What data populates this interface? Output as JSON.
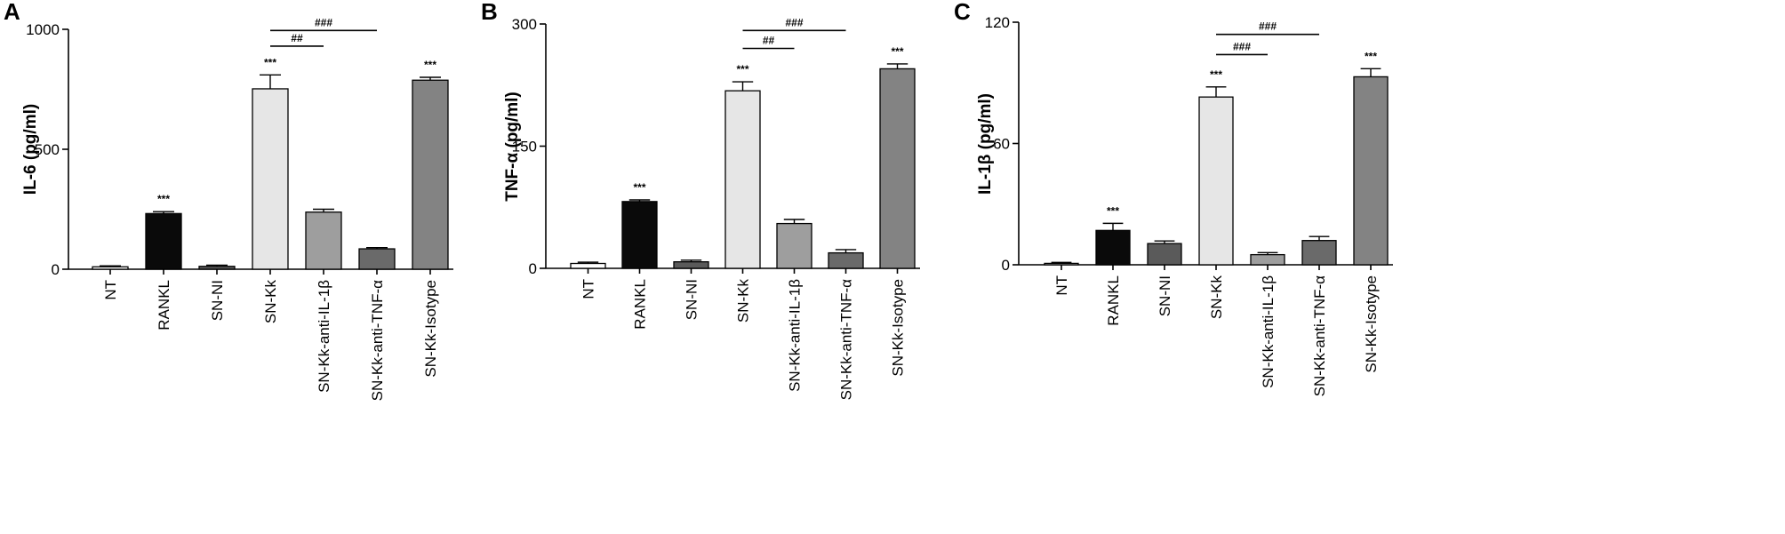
{
  "chart_data": [
    {
      "type": "bar",
      "panel": "A",
      "ylabel": "IL-6 (pg/ml)",
      "ylim": [
        0,
        1000
      ],
      "yticks": [
        0,
        500,
        1000
      ],
      "categories": [
        "NT",
        "RANKL",
        "SN-NI",
        "SN-Kk",
        "SN-Kk-anti-IL-1β",
        "SN-Kk-anti-TNF-α",
        "SN-Kk-Isotype"
      ],
      "values": [
        10,
        232,
        12,
        752,
        238,
        85,
        788
      ],
      "errors": [
        4,
        8,
        5,
        58,
        12,
        5,
        12
      ],
      "bar_colors": [
        "#ffffff",
        "#0a0a0a",
        "#5a5a5a",
        "#e6e6e6",
        "#9e9e9e",
        "#6a6a6a",
        "#838383"
      ],
      "sig_over_bars": [
        "",
        "***",
        "",
        "***",
        "",
        "",
        "***"
      ],
      "brackets": [
        {
          "from": "SN-Kk",
          "to": "SN-Kk-anti-IL-1β",
          "label": "##",
          "y": 930
        },
        {
          "from": "SN-Kk",
          "to": "SN-Kk-anti-TNF-α",
          "label": "###",
          "y": 995
        }
      ]
    },
    {
      "type": "bar",
      "panel": "B",
      "ylabel": "TNF-α (pg/ml)",
      "ylim": [
        0,
        300
      ],
      "yticks": [
        0,
        150,
        300
      ],
      "categories": [
        "NT",
        "RANKL",
        "SN-NI",
        "SN-Kk",
        "SN-Kk-anti-IL-1β",
        "SN-Kk-anti-TNF-α",
        "SN-Kk-Isotype"
      ],
      "values": [
        6,
        82,
        8,
        218,
        55,
        19,
        245
      ],
      "errors": [
        1.5,
        2,
        2,
        11,
        5,
        4,
        6
      ],
      "bar_colors": [
        "#ffffff",
        "#0a0a0a",
        "#5a5a5a",
        "#e6e6e6",
        "#9e9e9e",
        "#6a6a6a",
        "#838383"
      ],
      "sig_over_bars": [
        "",
        "***",
        "",
        "***",
        "",
        "",
        "***"
      ],
      "brackets": [
        {
          "from": "SN-Kk",
          "to": "SN-Kk-anti-IL-1β",
          "label": "##",
          "y": 270
        },
        {
          "from": "SN-Kk",
          "to": "SN-Kk-anti-TNF-α",
          "label": "###",
          "y": 292
        }
      ]
    },
    {
      "type": "bar",
      "panel": "C",
      "ylabel": "IL-1β (pg/ml)",
      "ylim": [
        0,
        120
      ],
      "yticks": [
        0,
        60,
        120
      ],
      "categories": [
        "NT",
        "RANKL",
        "SN-NI",
        "SN-Kk",
        "SN-Kk-anti-IL-1β",
        "SN-Kk-anti-TNF-α",
        "SN-Kk-Isotype"
      ],
      "values": [
        0.7,
        17,
        10.5,
        83,
        5,
        12,
        93
      ],
      "errors": [
        0.5,
        3.5,
        1.3,
        5,
        1,
        2,
        4
      ],
      "bar_colors": [
        "#ffffff",
        "#0a0a0a",
        "#5a5a5a",
        "#e6e6e6",
        "#9e9e9e",
        "#6a6a6a",
        "#838383"
      ],
      "sig_over_bars": [
        "",
        "***",
        "",
        "***",
        "",
        "",
        "***"
      ],
      "brackets": [
        {
          "from": "SN-Kk",
          "to": "SN-Kk-anti-IL-1β",
          "label": "###",
          "y": 104
        },
        {
          "from": "SN-Kk",
          "to": "SN-Kk-anti-TNF-α",
          "label": "###",
          "y": 114
        }
      ]
    }
  ]
}
